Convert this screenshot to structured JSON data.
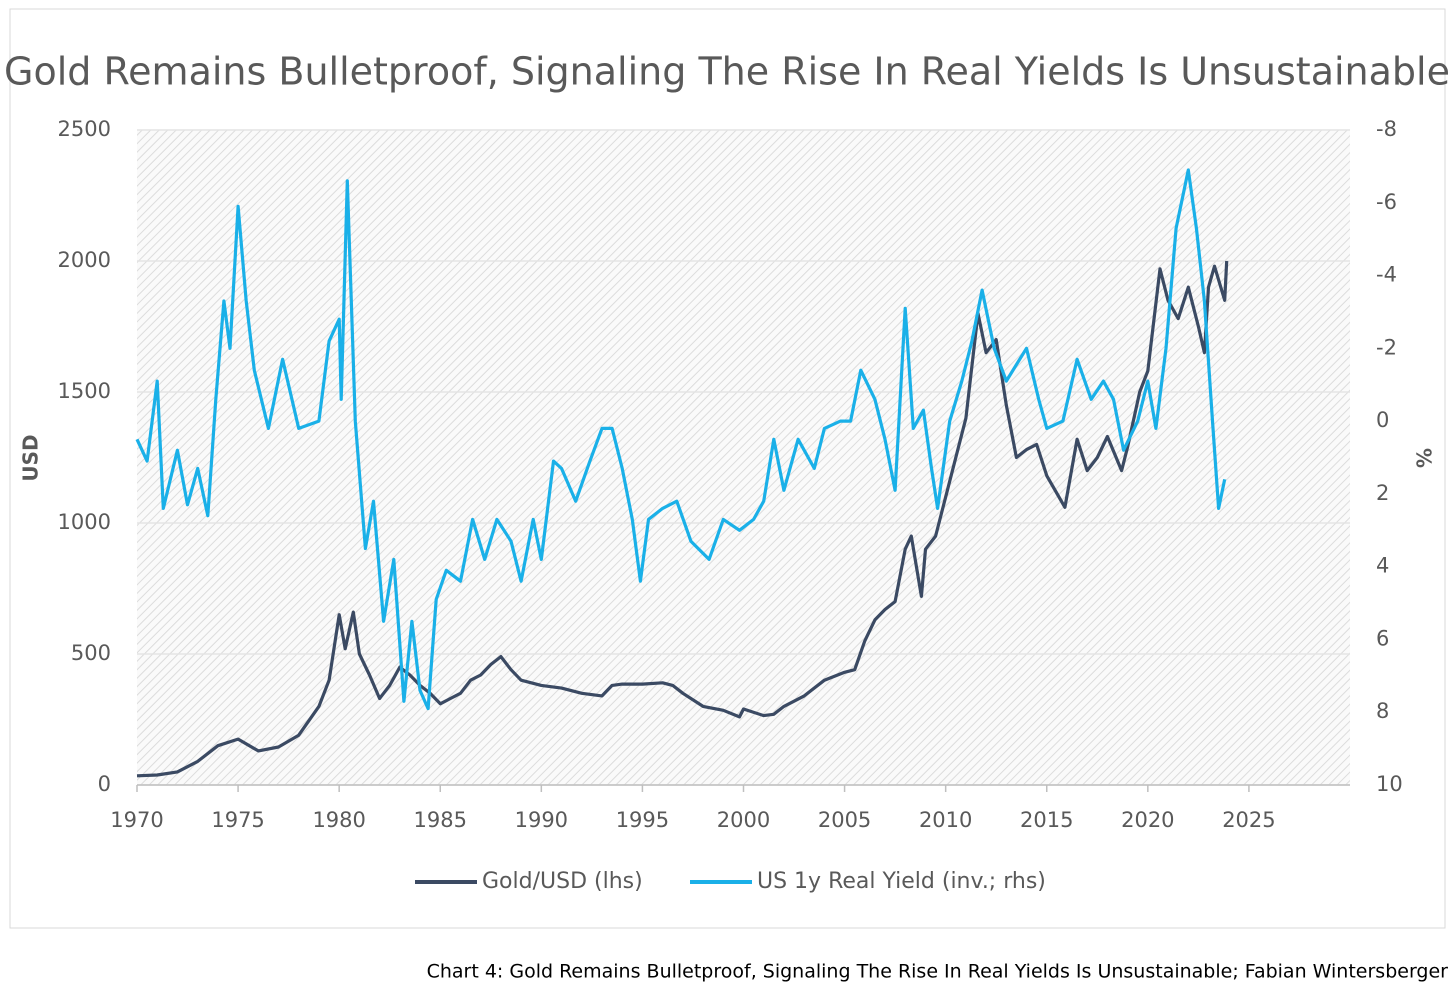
{
  "chart_data": {
    "type": "line",
    "title": "Gold Remains Bulletproof, Signaling The Rise In Real Yields Is Unsustainable",
    "caption": "Chart 4: Gold Remains Bulletproof, Signaling The Rise In Real Yields Is Unsustainable; Fabian Wintersberger",
    "ylabel": "USD",
    "y2label": "%",
    "xlim": [
      1970,
      2030
    ],
    "xticks": [
      1970,
      1975,
      1980,
      1985,
      1990,
      1995,
      2000,
      2005,
      2010,
      2015,
      2020,
      2025
    ],
    "ylim": [
      0,
      2500
    ],
    "yticks": [
      0,
      500,
      1000,
      1500,
      2000,
      2500
    ],
    "y2lim": [
      10,
      -8
    ],
    "y2ticks": [
      10,
      8,
      6,
      4,
      2,
      0,
      -2,
      -4,
      -6,
      -8
    ],
    "grid": true,
    "legend": "bottom",
    "series": [
      {
        "name": "Gold/USD (lhs)",
        "color": "#3b4a63",
        "axis": "y",
        "x": [
          1970,
          1971,
          1972,
          1973,
          1974,
          1975,
          1976,
          1977,
          1978,
          1979,
          1979.5,
          1980,
          1980.3,
          1980.7,
          1981,
          1981.5,
          1982,
          1982.5,
          1983,
          1983.5,
          1984,
          1984.5,
          1985,
          1985.5,
          1986,
          1986.5,
          1987,
          1987.5,
          1988,
          1988.5,
          1989,
          1990,
          1991,
          1992,
          1993,
          1993.5,
          1994,
          1995,
          1996,
          1996.5,
          1997,
          1998,
          1999,
          1999.8,
          2000,
          2001,
          2001.5,
          2002,
          2003,
          2004,
          2005,
          2005.5,
          2006,
          2006.5,
          2007,
          2007.5,
          2008,
          2008.3,
          2008.8,
          2009,
          2009.5,
          2010,
          2010.5,
          2011,
          2011.6,
          2012,
          2012.5,
          2013,
          2013.5,
          2014,
          2014.5,
          2015,
          2015.9,
          2016.5,
          2017,
          2017.5,
          2018,
          2018.7,
          2019,
          2019.6,
          2020,
          2020.6,
          2021,
          2021.5,
          2022,
          2022.5,
          2022.8,
          2023,
          2023.3,
          2023.8,
          2023.9
        ],
        "values": [
          35,
          38,
          50,
          90,
          150,
          175,
          130,
          145,
          190,
          300,
          400,
          650,
          520,
          660,
          500,
          420,
          330,
          380,
          450,
          420,
          380,
          350,
          310,
          330,
          350,
          400,
          420,
          460,
          490,
          440,
          400,
          380,
          370,
          350,
          340,
          380,
          385,
          385,
          390,
          380,
          350,
          300,
          285,
          260,
          290,
          265,
          270,
          300,
          340,
          400,
          430,
          440,
          550,
          630,
          670,
          700,
          900,
          950,
          720,
          900,
          950,
          1100,
          1250,
          1400,
          1800,
          1650,
          1700,
          1450,
          1250,
          1280,
          1300,
          1180,
          1060,
          1320,
          1200,
          1250,
          1330,
          1200,
          1290,
          1500,
          1580,
          1970,
          1850,
          1780,
          1900,
          1750,
          1650,
          1900,
          1980,
          1850,
          2000
        ]
      },
      {
        "name": "US 1y Real Yield (inv.; rhs)",
        "color": "#1ab0e8",
        "axis": "y2",
        "x": [
          1970,
          1970.5,
          1971,
          1971.3,
          1972,
          1972.5,
          1973,
          1973.5,
          1973.9,
          1974.3,
          1974.6,
          1975,
          1975.4,
          1975.8,
          1976.5,
          1977.2,
          1978,
          1979,
          1979.5,
          1980,
          1980.1,
          1980.4,
          1980.8,
          1981.3,
          1981.7,
          1982.2,
          1982.7,
          1983.2,
          1983.6,
          1984,
          1984.4,
          1984.8,
          1985.3,
          1986,
          1986.6,
          1987.2,
          1987.8,
          1988.5,
          1989,
          1989.6,
          1990,
          1990.6,
          1991,
          1991.7,
          1992.4,
          1993,
          1993.5,
          1994,
          1994.5,
          1994.9,
          1995.3,
          1996,
          1996.7,
          1997.4,
          1998.3,
          1999,
          1999.8,
          2000.5,
          2001,
          2001.5,
          2002,
          2002.7,
          2003.5,
          2004,
          2004.8,
          2005.3,
          2005.8,
          2006.5,
          2007,
          2007.5,
          2008,
          2008.4,
          2008.9,
          2009.3,
          2009.6,
          2010.2,
          2010.8,
          2011.3,
          2011.8,
          2012.4,
          2013,
          2014,
          2014.6,
          2015,
          2015.8,
          2016.5,
          2017.2,
          2017.8,
          2018.3,
          2018.8,
          2019.5,
          2020,
          2020.4,
          2020.9,
          2021.4,
          2022,
          2022.4,
          2022.8,
          2023.2,
          2023.5,
          2023.8
        ],
        "values": [
          0.5,
          1.1,
          -1.1,
          2.4,
          0.8,
          2.3,
          1.3,
          2.6,
          -0.6,
          -3.3,
          -2.0,
          -5.9,
          -3.3,
          -1.4,
          0.2,
          -1.7,
          0.2,
          0.0,
          -2.2,
          -2.8,
          -0.6,
          -6.6,
          0.0,
          3.5,
          2.2,
          5.5,
          3.8,
          7.7,
          5.5,
          7.4,
          7.9,
          4.9,
          4.1,
          4.4,
          2.7,
          3.8,
          2.7,
          3.3,
          4.4,
          2.7,
          3.8,
          1.1,
          1.3,
          2.2,
          1.1,
          0.2,
          0.2,
          1.3,
          2.7,
          4.4,
          2.7,
          2.4,
          2.2,
          3.3,
          3.8,
          2.7,
          3.0,
          2.7,
          2.2,
          0.5,
          1.9,
          0.5,
          1.3,
          0.2,
          0.0,
          0.0,
          -1.4,
          -0.6,
          0.5,
          1.9,
          -3.1,
          0.2,
          -0.3,
          1.3,
          2.4,
          0.0,
          -1.1,
          -2.2,
          -3.6,
          -2.0,
          -1.1,
          -2.0,
          -0.6,
          0.2,
          0.0,
          -1.7,
          -0.6,
          -1.1,
          -0.6,
          0.8,
          0.0,
          -1.1,
          0.2,
          -2.0,
          -5.3,
          -6.9,
          -5.3,
          -3.3,
          0.0,
          2.4,
          1.6
        ]
      }
    ]
  }
}
